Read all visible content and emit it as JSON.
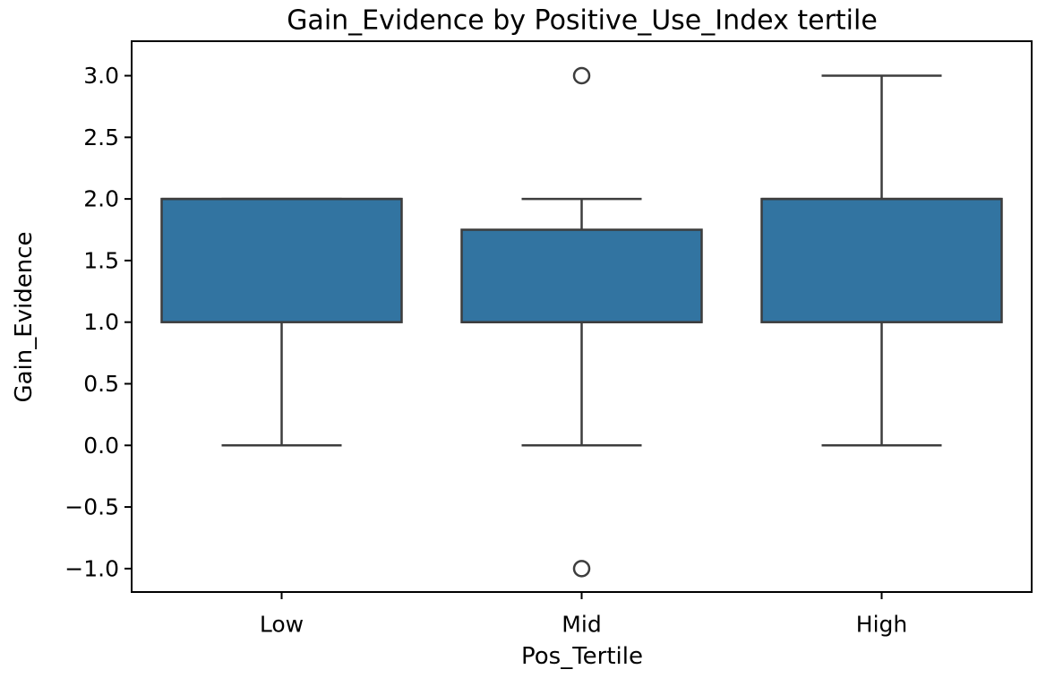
{
  "chart_data": {
    "type": "boxplot",
    "title": "Gain_Evidence by Positive_Use_Index tertile",
    "xlabel": "Pos_Tertile",
    "ylabel": "Gain_Evidence",
    "categories": [
      "Low",
      "Mid",
      "High"
    ],
    "series": [
      {
        "name": "Low",
        "q1": 1.0,
        "median": 2.0,
        "q3": 2.0,
        "whisker_low": 0.0,
        "whisker_high": 2.0,
        "outliers": []
      },
      {
        "name": "Mid",
        "q1": 1.0,
        "median": 1.0,
        "q3": 1.75,
        "whisker_low": 0.0,
        "whisker_high": 2.0,
        "outliers": [
          3.0,
          -1.0
        ]
      },
      {
        "name": "High",
        "q1": 1.0,
        "median": 2.0,
        "q3": 2.0,
        "whisker_low": 0.0,
        "whisker_high": 3.0,
        "outliers": []
      }
    ],
    "ytick_values": [
      3.0,
      2.5,
      2.0,
      1.5,
      1.0,
      0.5,
      0.0,
      -0.5,
      -1.0
    ],
    "ytick_labels": [
      "3.0",
      "2.5",
      "2.0",
      "1.5",
      "1.0",
      "0.5",
      "0.0",
      "−0.5",
      "−1.0"
    ],
    "ylim": [
      -1.19,
      3.28
    ],
    "grid": false,
    "legend": null,
    "colors": {
      "box_fill": "#3274A1",
      "box_edge": "#3D3D3D",
      "whisker": "#3D3D3D",
      "median": "#3D3D3D",
      "outlier": "#3D3D3D",
      "spine": "#000000",
      "text": "#000000",
      "background": "#FFFFFF"
    }
  }
}
